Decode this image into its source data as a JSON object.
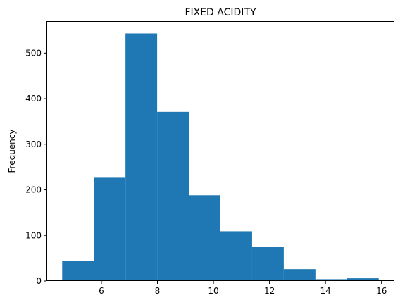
{
  "chart_data": {
    "type": "bar",
    "subtype": "histogram",
    "title": "FIXED ACIDITY",
    "xlabel": "",
    "ylabel": "Frequency",
    "xlim": [
      4.04,
      16.46
    ],
    "ylim": [
      0,
      570
    ],
    "x_ticks": [
      6,
      8,
      10,
      12,
      14,
      16
    ],
    "y_ticks": [
      0,
      100,
      200,
      300,
      400,
      500
    ],
    "bin_edges": [
      4.6,
      5.73,
      6.86,
      7.99,
      9.12,
      10.25,
      11.38,
      12.51,
      13.64,
      14.77,
      15.9
    ],
    "values": [
      44,
      228,
      543,
      371,
      188,
      109,
      75,
      26,
      4,
      6
    ],
    "bar_color": "#1f77b4",
    "grid": false,
    "legend": "none"
  }
}
